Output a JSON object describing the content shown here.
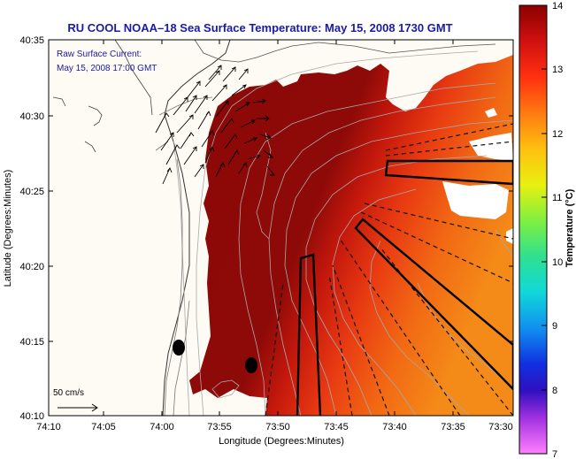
{
  "title": "RU COOL  NOAA–18  Sea Surface Temperature:  May 15, 2008 1730 GMT",
  "annotations": {
    "raw_current_label": "Raw Surface Current:",
    "raw_current_time": "May 15, 2008 17:00 GMT",
    "scale_label": "50 cm/s"
  },
  "axes": {
    "x_label": "Longitude (Degrees:Minutes)",
    "y_label": "Latitude (Degrees:Minutes)",
    "x_ticks": [
      "74:10",
      "74:05",
      "74:00",
      "73:55",
      "73:50",
      "73:45",
      "73:40",
      "73:35",
      "73:30"
    ],
    "y_ticks": [
      "40:35",
      "40:30",
      "40:25",
      "40:20",
      "40:15",
      "40:10"
    ]
  },
  "colorbar": {
    "label": "Temperature (°C)",
    "min": 7,
    "max": 14,
    "ticks": [
      "14",
      "13",
      "12",
      "11",
      "10",
      "9",
      "8",
      "7"
    ]
  },
  "colors": {
    "title": "#1a1aa6",
    "land": "#fdfbf3",
    "warm": "#8b0a0a",
    "hot": "#d4200e"
  }
}
